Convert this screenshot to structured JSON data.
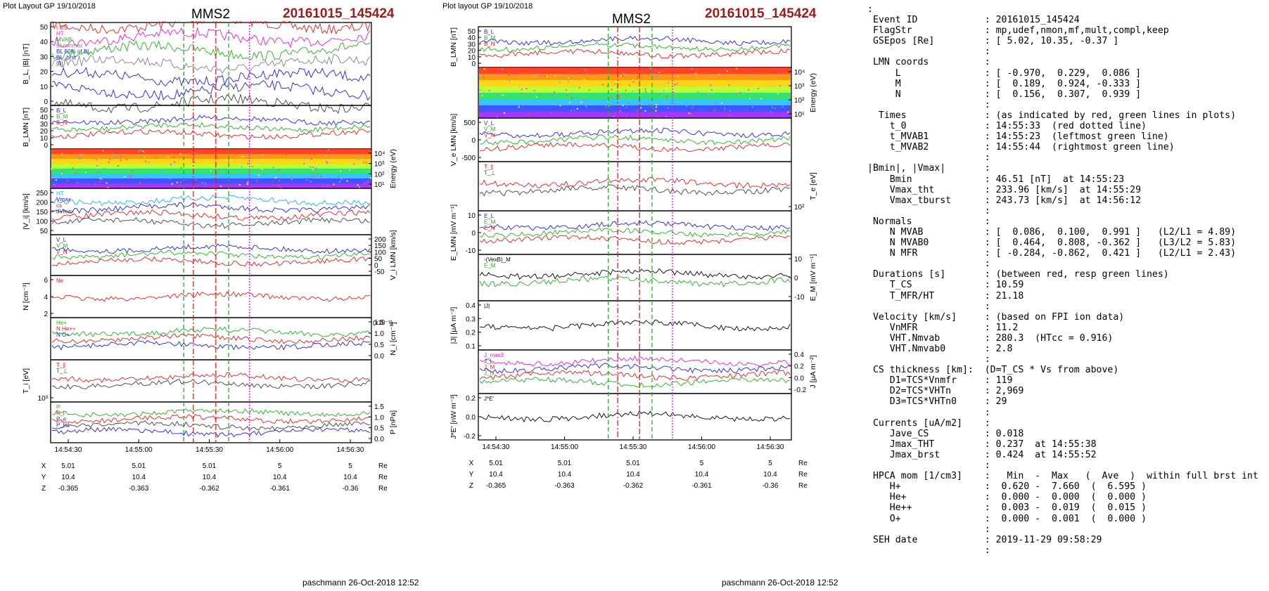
{
  "left": {
    "layout_label": "Plot Layout GP 19/10/2018",
    "title": "MMS2",
    "event": "20161015_145424",
    "footer": "paschmann 26-Oct-2018 12:52",
    "panels": [
      {
        "ylabel": "B_L, |B| [nT]",
        "yticks": [
          "0",
          "10",
          "20",
          "30",
          "40",
          "50"
        ],
        "legend": [
          {
            "t": "t CS",
            "c": "#e02020"
          },
          {
            "t": "HT",
            "c": "#e020e0"
          },
          {
            "t": "MVAB",
            "c": "#20b020"
          },
          {
            "t": "BLminmax",
            "c": "#808080"
          },
          {
            "t": "BL 50% of BL",
            "c": "#2020e0"
          },
          {
            "t": "BL_brst",
            "c": "#2020e0"
          },
          {
            "t": "|B|",
            "c": "#404040"
          }
        ]
      },
      {
        "ylabel": "B_LMN [nT]",
        "yticks": [
          "0",
          "10",
          "20",
          "30",
          "40",
          "50"
        ],
        "legend": [
          {
            "t": "B_L",
            "c": "#2020e0"
          },
          {
            "t": "B_M",
            "c": "#20b020"
          },
          {
            "t": "B_N",
            "c": "#e02020"
          }
        ]
      },
      {
        "ylabel": "Energy (eV)",
        "yticks": [
          "10¹",
          "10²",
          "10³",
          "10⁴"
        ],
        "legend": []
      },
      {
        "ylabel": "|V_i| [km/s]",
        "yticks": [
          "50",
          "100",
          "150",
          "200",
          "250"
        ],
        "legend": [
          {
            "t": "HT",
            "c": "#20b0e0"
          },
          {
            "t": "Vmax",
            "c": "#2020e0"
          },
          {
            "t": "cs",
            "c": "#e02020"
          },
          {
            "t": "dVmax",
            "c": "#404040"
          }
        ]
      },
      {
        "ylabel": "V_i LMN [km/s]",
        "yticks": [
          "-50",
          "0",
          "50",
          "100",
          "150",
          "200"
        ],
        "legend": [
          {
            "t": "V_L",
            "c": "#2020e0"
          },
          {
            "t": "V_M",
            "c": "#20b020"
          },
          {
            "t": "V_N",
            "c": "#e02020"
          }
        ]
      },
      {
        "ylabel": "N [cm⁻³]",
        "yticks": [
          "2",
          "4",
          "6"
        ],
        "legend": [
          {
            "t": "Ne",
            "c": "#e02020"
          }
        ]
      },
      {
        "ylabel": "N_i [cm⁻³]",
        "yticks": [
          "0.0",
          "0.5",
          "1.0",
          "1.5"
        ],
        "legend": [
          {
            "t": "He+",
            "c": "#20b020"
          },
          {
            "t": "N He++",
            "c": "#e02020"
          },
          {
            "t": "N O+",
            "c": "#2020e0"
          }
        ],
        "scale": "(x10⁻²)"
      },
      {
        "ylabel": "T_i [eV]",
        "yticks": [
          "10³"
        ],
        "legend": [
          {
            "t": "T_∥",
            "c": "#e02020"
          },
          {
            "t": "T_⊥",
            "c": "#404040"
          }
        ]
      },
      {
        "ylabel": "P [nPa]",
        "yticks": [
          "0.0",
          "0.5",
          "1.0",
          "1.5"
        ],
        "legend": [
          {
            "t": "P",
            "c": "#20b020"
          },
          {
            "t": "P_i",
            "c": "#e02020"
          },
          {
            "t": "P_e",
            "c": "#404040"
          },
          {
            "t": "P_tot",
            "c": "#2020e0"
          }
        ]
      }
    ],
    "xticks": [
      "14:54:30",
      "14:55:00",
      "14:55:30",
      "14:56:00",
      "14:56:30"
    ],
    "coord_rows": [
      {
        "label": "X",
        "vals": [
          "5.01",
          "5.01",
          "5.01",
          "5",
          "5"
        ],
        "unit": "Re"
      },
      {
        "label": "Y",
        "vals": [
          "10.4",
          "10.4",
          "10.4",
          "10.4",
          "10.4"
        ],
        "unit": "Re"
      },
      {
        "label": "Z",
        "vals": [
          "-0.365",
          "-0.363",
          "-0.362",
          "-0.361",
          "-0.36"
        ],
        "unit": "Re"
      }
    ]
  },
  "middle": {
    "layout_label": "Plot layout GP 19/10/2018",
    "title": "MMS2",
    "event": "20161015_145424",
    "footer": "paschmann 26-Oct-2018 12:52",
    "panels": [
      {
        "ylabel": "B_LMN [nT]",
        "yticks": [
          "0",
          "10",
          "20",
          "30",
          "40",
          "50"
        ],
        "legend": [
          {
            "t": "B_L",
            "c": "#2020e0"
          },
          {
            "t": "B_M",
            "c": "#20b020"
          },
          {
            "t": "B_N",
            "c": "#e02020"
          }
        ]
      },
      {
        "ylabel": "Energy (eV)",
        "yticks": [
          "10¹",
          "10²",
          "10³",
          "10⁴"
        ],
        "legend": []
      },
      {
        "ylabel": "V_e LMN [km/s]",
        "yticks": [
          "-500",
          "0",
          "500"
        ],
        "legend": [
          {
            "t": "V_L",
            "c": "#2020e0"
          },
          {
            "t": "V_M",
            "c": "#20b020"
          },
          {
            "t": "V_N",
            "c": "#e02020"
          }
        ]
      },
      {
        "ylabel": "T_e [eV]",
        "yticks": [
          "10²"
        ],
        "legend": [
          {
            "t": "T_∥",
            "c": "#e02020"
          },
          {
            "t": "T_⊥",
            "c": "#404040"
          }
        ]
      },
      {
        "ylabel": "E_LMN [mV m⁻¹]",
        "yticks": [
          "-10",
          "0",
          "10"
        ],
        "legend": [
          {
            "t": "E_L",
            "c": "#2020e0"
          },
          {
            "t": "E_M",
            "c": "#20b020"
          },
          {
            "t": "E_N",
            "c": "#e02020"
          }
        ]
      },
      {
        "ylabel": "E_M [mV m⁻¹]",
        "yticks": [
          "-10",
          "0",
          "10"
        ],
        "legend": [
          {
            "t": "-(VexB)_M",
            "c": "#000000"
          },
          {
            "t": "E_M",
            "c": "#20b020"
          }
        ]
      },
      {
        "ylabel": "|J| [μA m⁻²]",
        "yticks": [
          "0.1",
          "0.2",
          "0.3",
          "0.4"
        ],
        "legend": [
          {
            "t": "|J|",
            "c": "#000000"
          }
        ]
      },
      {
        "ylabel": "J [μA m⁻²]",
        "yticks": [
          "-0.2",
          "0.0",
          "0.2",
          "0.4"
        ],
        "legend": [
          {
            "t": "J_max3",
            "c": "#e020e0"
          },
          {
            "t": "J_L",
            "c": "#2020e0"
          },
          {
            "t": "J_M",
            "c": "#e02020"
          },
          {
            "t": "J_N",
            "c": "#20b020"
          }
        ]
      },
      {
        "ylabel": "J*E' [nW m⁻³]",
        "yticks": [
          "-0.2",
          "0.0",
          "0.2"
        ],
        "legend": [
          {
            "t": "J*E'",
            "c": "#000000"
          }
        ]
      }
    ],
    "xticks": [
      "14:54:30",
      "14:55:00",
      "14:55:30",
      "14:56:00",
      "14:56:30"
    ],
    "coord_rows": [
      {
        "label": "X",
        "vals": [
          "5.01",
          "5.01",
          "5.01",
          "5",
          "5"
        ],
        "unit": "Re"
      },
      {
        "label": "Y",
        "vals": [
          "10.4",
          "10.4",
          "10.4",
          "10.4",
          "10.4"
        ],
        "unit": "Re"
      },
      {
        "label": "Z",
        "vals": [
          "-0.365",
          "-0.363",
          "-0.362",
          "-0.361",
          "-0.36"
        ],
        "unit": "Re"
      }
    ]
  },
  "info_lines": [
    ":",
    " Event ID            : 20161015_145424",
    " FlagStr             : mp,udef,nmon,mf,mult,compl,keep",
    " GSEpos [Re]         : [ 5.02, 10.35, -0.37 ]",
    "                     :",
    " LMN coords          :",
    "     L               : [ -0.970,  0.229,  0.086 ]",
    "     M               : [  0.189,  0.924, -0.333 ]",
    "     N               : [  0.156,  0.307,  0.939 ]",
    "                     :",
    "  Times              : (as indicated by red, green lines in plots)",
    "    t_0              : 14:55:33  (red dotted line)",
    "    t_MVAB1          : 14:55:23  (leftmost green line)",
    "    t_MVAB2          : 14:55:44  (rightmost green line)",
    "                     :",
    "|Bmin|, |Vmax|       :",
    "    Bmin             : 46.51 [nT]  at 14:55:23",
    "    Vmax_tht         : 233.96 [km/s]  at 14:55:29",
    "    Vmax_tburst      : 243.73 [km/s]  at 14:56:12",
    "                     :",
    " Normals             :",
    "    N MVAB           : [  0.086,  0.100,  0.991 ]   (L2/L1 = 4.89)",
    "    N MVAB0          : [  0.464,  0.808, -0.362 ]   (L3/L2 = 5.83)",
    "    N MFR            : [ -0.284, -0.862,  0.421 ]   (L2/L1 = 2.43)",
    "                     :",
    " Durations [s]       : (between red, resp green lines)",
    "    T_CS             : 10.59",
    "    T_MFR/HT         : 21.18",
    "                     :",
    " Velocity [km/s]     : (based on FPI ion data)",
    "    VnMFR            : 11.2",
    "    VHT.Nmvab        : 280.3  (HTcc = 0.916)",
    "    VHT.Nmvab0       : 2.8",
    "                     :",
    " CS thickness [km]:  (D=T_CS * Vs from above)",
    "    D1=TCS*Vnmfr     : 119",
    "    D2=TCS*VHTn      : 2,969",
    "    D3=TCS*VHTn0     : 29",
    "                     :",
    " Currents [uA/m2]    :",
    "    Jave_CS          : 0.018",
    "    Jmax_THT         : 0.237  at 14:55:38",
    "    Jmax_brst        : 0.424  at 14:55:52",
    "                     :",
    " HPCA mom [1/cm3]    :   Min  -  Max   (  Ave  )  within full brst int",
    "    H+               :  0.620 -  7.660  (  6.595 )",
    "    He+              :  0.000 -  0.000  (  0.000 )",
    "    He++             :  0.003 -  0.019  (  0.015 )",
    "    O+               :  0.000 -  0.001  (  0.000 )",
    "                     :",
    " SEH date            : 2019-11-29 09:58:29",
    "                     :"
  ]
}
